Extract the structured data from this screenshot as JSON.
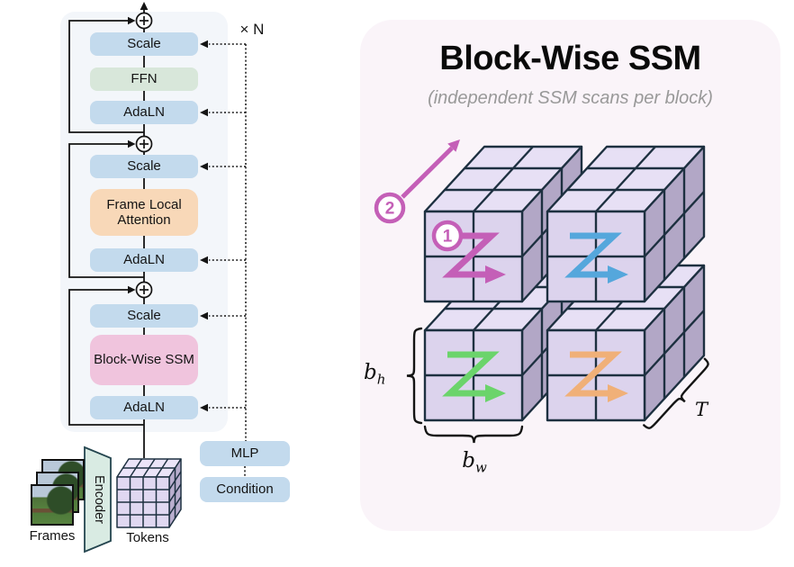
{
  "left_panel": {
    "repeat_label": "× N",
    "groups": [
      {
        "scale": "Scale",
        "core": "FFN",
        "norm": "AdaLN"
      },
      {
        "scale": "Scale",
        "core": "Frame Local Attention",
        "norm": "AdaLN"
      },
      {
        "scale": "Scale",
        "core": "Block-Wise SSM",
        "norm": "AdaLN"
      }
    ],
    "condition_path": {
      "mlp": "MLP",
      "condition": "Condition"
    },
    "input_labels": {
      "frames": "Frames",
      "encoder": "Encoder",
      "tokens": "Tokens"
    }
  },
  "right_panel": {
    "title": "Block-Wise SSM",
    "subtitle": "(independent SSM scans per block)",
    "scan_badges": {
      "first": "1",
      "second": "2"
    },
    "dim_labels": {
      "bh_base": "b",
      "bh_sub": "h",
      "bw_base": "b",
      "bw_sub": "w",
      "time": "T"
    }
  },
  "colors": {
    "left_panel_bg": "#F3F6FA",
    "right_panel_bg": "#FAF4F9",
    "box_blue": "#C3DAED",
    "box_green": "#D8E7DA",
    "box_peach": "#F8D8B8",
    "box_pink": "#F0C4DD",
    "cube_front": "#DCD3ED",
    "cube_top": "#E7E0F5",
    "cube_side": "#B2A7C6",
    "cube_outline": "#1D3040",
    "scan_magenta": "#C45FB7",
    "scan_blue": "#55A7DC",
    "scan_green": "#6BD46B",
    "scan_orange": "#F0B078"
  }
}
